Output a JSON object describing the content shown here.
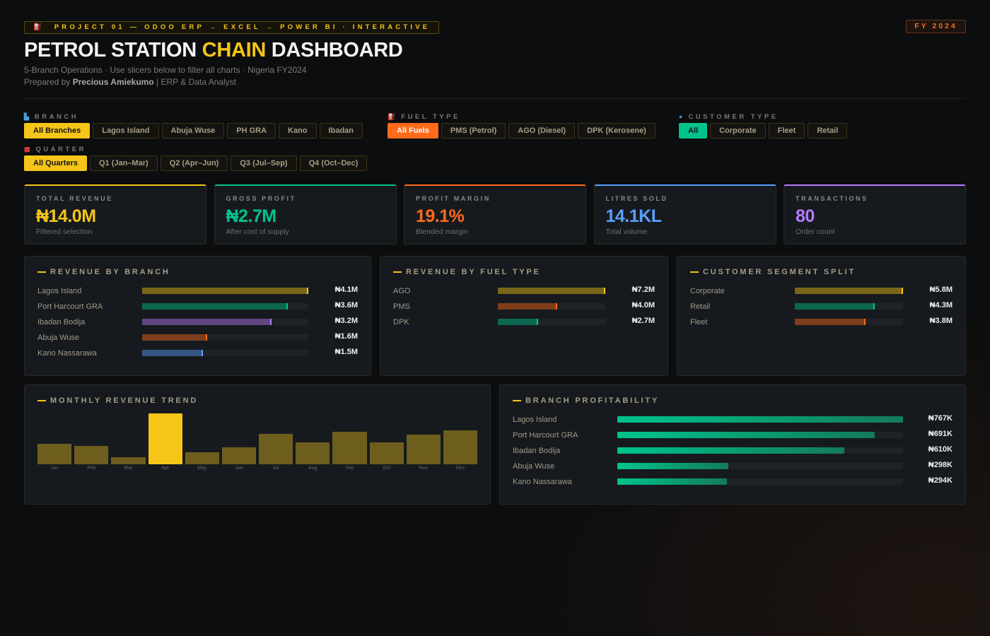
{
  "header": {
    "tag": "PROJECT 01 — ODOO ERP → EXCEL → POWER BI · INTERACTIVE",
    "tag_icon": "fuel-pump-icon",
    "fy_badge": "FY 2024",
    "title_a": "PETROL STATION ",
    "title_accent": "CHAIN",
    "title_b": " DASHBOARD",
    "subtitle": "5-Branch Operations · Use slicers below to filter all charts · Nigeria FY2024",
    "prepared_prefix": "Prepared by ",
    "author": "Precious Amiekumo",
    "role": " |  ERP & Data Analyst"
  },
  "filters": {
    "branch": {
      "label": "BRANCH",
      "icon": "store-icon",
      "options": [
        "All Branches",
        "Lagos Island",
        "Abuja Wuse",
        "PH GRA",
        "Kano",
        "Ibadan"
      ],
      "selected": "All Branches"
    },
    "fuel": {
      "label": "FUEL TYPE",
      "icon": "fuel-pump-icon",
      "options": [
        "All Fuels",
        "PMS (Petrol)",
        "AGO (Diesel)",
        "DPK (Kerosene)"
      ],
      "selected": "All Fuels"
    },
    "customer": {
      "label": "CUSTOMER TYPE",
      "icon": "user-icon",
      "options": [
        "All",
        "Corporate",
        "Fleet",
        "Retail"
      ],
      "selected": "All"
    },
    "quarter": {
      "label": "QUARTER",
      "icon": "calendar-icon",
      "options": [
        "All Quarters",
        "Q1 (Jan–Mar)",
        "Q2 (Apr–Jun)",
        "Q3 (Jul–Sep)",
        "Q4 (Oct–Dec)"
      ],
      "selected": "All Quarters"
    }
  },
  "kpis": [
    {
      "label": "TOTAL REVENUE",
      "value": "₦14.0M",
      "sub": "Filtered selection",
      "color": "#f5c518"
    },
    {
      "label": "GROSS PROFIT",
      "value": "₦2.7M",
      "sub": "After cost of supply",
      "color": "#00c48c"
    },
    {
      "label": "PROFIT MARGIN",
      "value": "19.1%",
      "sub": "Blended margin",
      "color": "#ff6b1a"
    },
    {
      "label": "LITRES SOLD",
      "value": "14.1KL",
      "sub": "Total volume",
      "color": "#5aa0ff"
    },
    {
      "label": "TRANSACTIONS",
      "value": "80",
      "sub": "Order count",
      "color": "#b57bff"
    }
  ],
  "chart_data": [
    {
      "type": "bar",
      "orientation": "horizontal",
      "title": "REVENUE BY BRANCH",
      "categories": [
        "Lagos Island",
        "Port Harcourt GRA",
        "Ibadan Bodija",
        "Abuja Wuse",
        "Kano Nassarawa"
      ],
      "values": [
        4.1,
        3.6,
        3.2,
        1.6,
        1.5
      ],
      "labels": [
        "₦4.1M",
        "₦3.6M",
        "₦3.2M",
        "₦1.6M",
        "₦1.5M"
      ],
      "colors": [
        "#f5c518",
        "#00c48c",
        "#b57bff",
        "#ff6b1a",
        "#5aa0ff"
      ]
    },
    {
      "type": "bar",
      "orientation": "horizontal",
      "title": "REVENUE BY FUEL TYPE",
      "categories": [
        "AGO",
        "PMS",
        "DPK"
      ],
      "values": [
        7.2,
        4.0,
        2.7
      ],
      "labels": [
        "₦7.2M",
        "₦4.0M",
        "₦2.7M"
      ],
      "colors": [
        "#f5c518",
        "#ff6b1a",
        "#00c48c"
      ]
    },
    {
      "type": "bar",
      "orientation": "horizontal",
      "title": "CUSTOMER SEGMENT SPLIT",
      "categories": [
        "Corporate",
        "Retail",
        "Fleet"
      ],
      "values": [
        5.8,
        4.3,
        3.8
      ],
      "labels": [
        "₦5.8M",
        "₦4.3M",
        "₦3.8M"
      ],
      "colors": [
        "#f5c518",
        "#00c48c",
        "#ff6b1a"
      ]
    },
    {
      "type": "bar",
      "title": "MONTHLY REVENUE TREND",
      "categories": [
        "Jan",
        "Feb",
        "Mar",
        "Apr",
        "May",
        "Jun",
        "Jul",
        "Aug",
        "Sep",
        "Oct",
        "Nov",
        "Dec"
      ],
      "values": [
        40,
        36,
        14,
        100,
        23,
        34,
        60,
        43,
        64,
        43,
        59,
        67
      ],
      "value_unit": "percent of peak month",
      "highlight": "Apr"
    },
    {
      "type": "bar",
      "orientation": "horizontal",
      "title": "BRANCH PROFITABILITY",
      "categories": [
        "Lagos Island",
        "Port Harcourt GRA",
        "Ibadan Bodija",
        "Abuja Wuse",
        "Kano Nassarawa"
      ],
      "values": [
        767,
        691,
        610,
        298,
        294
      ],
      "labels": [
        "₦767K",
        "₦691K",
        "₦610K",
        "₦298K",
        "₦294K"
      ],
      "colors": [
        "#00c48c",
        "#00c48c",
        "#00c48c",
        "#00c48c",
        "#00c48c"
      ]
    }
  ]
}
